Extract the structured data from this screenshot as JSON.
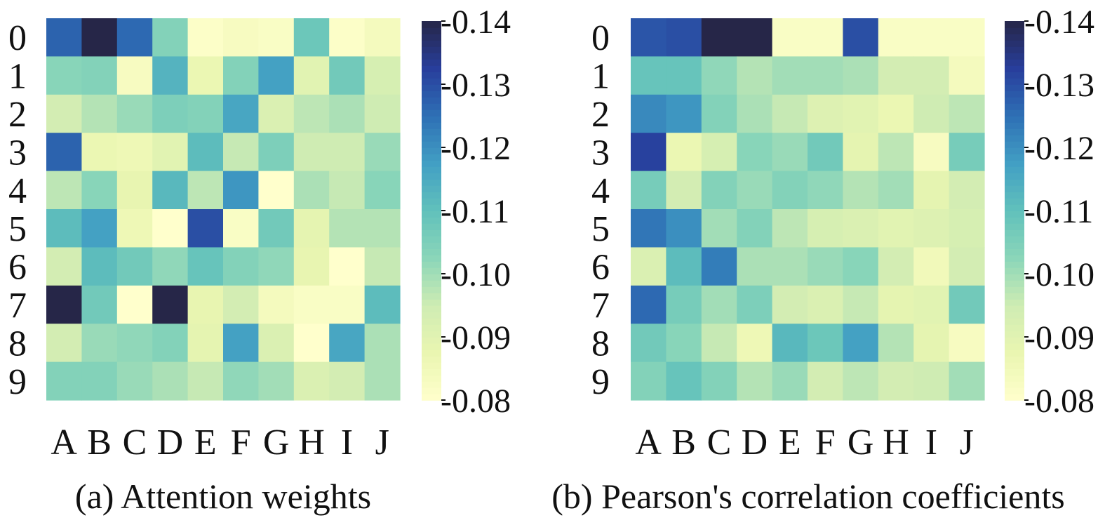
{
  "chart_data": [
    {
      "type": "heatmap",
      "title": "(a) Attention weights",
      "row_labels": [
        "0",
        "1",
        "2",
        "3",
        "4",
        "5",
        "6",
        "7",
        "8",
        "9"
      ],
      "col_labels": [
        "A",
        "B",
        "C",
        "D",
        "E",
        "F",
        "G",
        "H",
        "I",
        "J"
      ],
      "colormap": "YlGnBu",
      "vmin": 0.08,
      "vmax": 0.14,
      "colorbar_ticks": [
        "0.14",
        "0.13",
        "0.12",
        "0.11",
        "0.10",
        "0.09",
        "0.08"
      ],
      "values": [
        [
          0.127,
          0.14,
          0.126,
          0.104,
          0.081,
          0.083,
          0.082,
          0.108,
          0.081,
          0.084
        ],
        [
          0.103,
          0.104,
          0.083,
          0.113,
          0.087,
          0.104,
          0.117,
          0.09,
          0.107,
          0.093
        ],
        [
          0.094,
          0.098,
          0.101,
          0.105,
          0.104,
          0.116,
          0.092,
          0.097,
          0.099,
          0.095
        ],
        [
          0.127,
          0.087,
          0.086,
          0.09,
          0.111,
          0.096,
          0.105,
          0.095,
          0.095,
          0.101
        ],
        [
          0.097,
          0.103,
          0.088,
          0.112,
          0.097,
          0.119,
          0.08,
          0.099,
          0.096,
          0.103
        ],
        [
          0.111,
          0.117,
          0.086,
          0.08,
          0.13,
          0.082,
          0.107,
          0.089,
          0.098,
          0.098
        ],
        [
          0.094,
          0.111,
          0.107,
          0.102,
          0.109,
          0.104,
          0.102,
          0.088,
          0.08,
          0.096
        ],
        [
          0.14,
          0.107,
          0.08,
          0.14,
          0.088,
          0.094,
          0.084,
          0.082,
          0.082,
          0.111
        ],
        [
          0.094,
          0.101,
          0.102,
          0.104,
          0.089,
          0.117,
          0.092,
          0.08,
          0.116,
          0.099
        ],
        [
          0.104,
          0.104,
          0.101,
          0.099,
          0.096,
          0.102,
          0.1,
          0.092,
          0.094,
          0.099
        ]
      ]
    },
    {
      "type": "heatmap",
      "title": "(b) Pearson's correlation coefficients",
      "row_labels": [
        "0",
        "1",
        "2",
        "3",
        "4",
        "5",
        "6",
        "7",
        "8",
        "9"
      ],
      "col_labels": [
        "A",
        "B",
        "C",
        "D",
        "E",
        "F",
        "G",
        "H",
        "I",
        "J"
      ],
      "colormap": "YlGnBu",
      "vmin": 0.08,
      "vmax": 0.14,
      "colorbar_ticks": [
        "0.14",
        "0.13",
        "0.12",
        "0.11",
        "0.10",
        "0.09",
        "0.08"
      ],
      "values": [
        [
          0.129,
          0.13,
          0.14,
          0.14,
          0.082,
          0.082,
          0.13,
          0.082,
          0.082,
          0.082
        ],
        [
          0.109,
          0.109,
          0.102,
          0.098,
          0.1,
          0.1,
          0.099,
          0.094,
          0.094,
          0.084
        ],
        [
          0.121,
          0.119,
          0.104,
          0.099,
          0.096,
          0.091,
          0.09,
          0.087,
          0.095,
          0.097
        ],
        [
          0.132,
          0.087,
          0.093,
          0.103,
          0.101,
          0.107,
          0.089,
          0.097,
          0.083,
          0.106
        ],
        [
          0.106,
          0.094,
          0.104,
          0.101,
          0.104,
          0.102,
          0.098,
          0.1,
          0.089,
          0.094
        ],
        [
          0.124,
          0.12,
          0.1,
          0.104,
          0.097,
          0.093,
          0.092,
          0.09,
          0.091,
          0.093
        ],
        [
          0.092,
          0.111,
          0.123,
          0.099,
          0.099,
          0.101,
          0.103,
          0.094,
          0.085,
          0.094
        ],
        [
          0.126,
          0.106,
          0.1,
          0.105,
          0.094,
          0.092,
          0.096,
          0.089,
          0.09,
          0.107
        ],
        [
          0.107,
          0.103,
          0.096,
          0.086,
          0.112,
          0.108,
          0.117,
          0.098,
          0.089,
          0.083
        ],
        [
          0.104,
          0.109,
          0.104,
          0.098,
          0.101,
          0.094,
          0.097,
          0.094,
          0.095,
          0.1
        ]
      ]
    }
  ]
}
